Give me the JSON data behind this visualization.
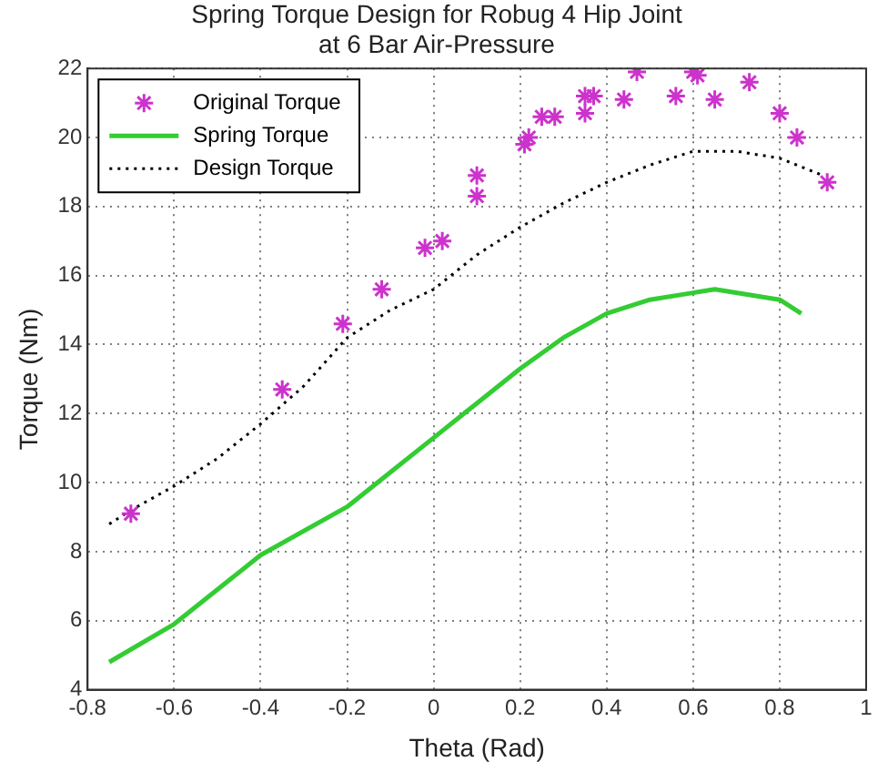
{
  "chart_data": {
    "type": "line",
    "title": "Spring Torque Design for Robug 4 Hip Joint\nat 6 Bar Air-Pressure",
    "xlabel": "Theta (Rad)",
    "ylabel": "Torque (Nm)",
    "xlim": [
      -0.8,
      1
    ],
    "xticks": [
      -0.8,
      -0.6,
      -0.4,
      -0.2,
      0,
      0.2,
      0.4,
      0.6,
      0.8,
      1
    ],
    "ylim": [
      4,
      22
    ],
    "yticks": [
      4,
      6,
      8,
      10,
      12,
      14,
      16,
      18,
      20,
      22
    ],
    "grid": true,
    "legend": "top left",
    "series": [
      {
        "name": "Original Torque",
        "type": "scatter",
        "marker": "cross",
        "color": "#cc33cc",
        "x": [
          -0.7,
          -0.35,
          -0.21,
          -0.12,
          -0.02,
          0.02,
          0.1,
          0.1,
          0.21,
          0.22,
          0.25,
          0.28,
          0.35,
          0.35,
          0.37,
          0.44,
          0.47,
          0.56,
          0.6,
          0.61,
          0.65,
          0.73,
          0.8,
          0.84,
          0.91
        ],
        "values": [
          9.1,
          12.7,
          14.6,
          15.6,
          16.8,
          17.0,
          18.3,
          18.9,
          19.8,
          20.0,
          20.6,
          20.6,
          21.2,
          20.7,
          21.2,
          21.1,
          21.9,
          21.2,
          21.9,
          21.8,
          21.1,
          21.6,
          20.7,
          20.0,
          18.7
        ]
      },
      {
        "name": "Spring Torque",
        "line_style": "solid",
        "marker": "none",
        "color": "#33cc33",
        "x": [
          -0.75,
          -0.6,
          -0.4,
          -0.2,
          -0.1,
          0,
          0.1,
          0.2,
          0.3,
          0.4,
          0.5,
          0.6,
          0.65,
          0.8,
          0.85
        ],
        "values": [
          4.8,
          5.9,
          7.9,
          9.3,
          10.3,
          11.3,
          12.3,
          13.3,
          14.2,
          14.9,
          15.3,
          15.5,
          15.6,
          15.3,
          14.9
        ]
      },
      {
        "name": "Design Torque",
        "line_style": "dotted",
        "marker": "none",
        "color": "#000000",
        "x": [
          -0.75,
          -0.7,
          -0.6,
          -0.5,
          -0.4,
          -0.3,
          -0.2,
          -0.1,
          0,
          0.1,
          0.2,
          0.3,
          0.4,
          0.5,
          0.6,
          0.65,
          0.7,
          0.8,
          0.9
        ],
        "values": [
          8.8,
          9.2,
          9.9,
          10.7,
          11.7,
          12.8,
          14.2,
          15.0,
          15.6,
          16.6,
          17.4,
          18.1,
          18.7,
          19.2,
          19.6,
          19.6,
          19.6,
          19.4,
          18.9
        ]
      }
    ]
  }
}
